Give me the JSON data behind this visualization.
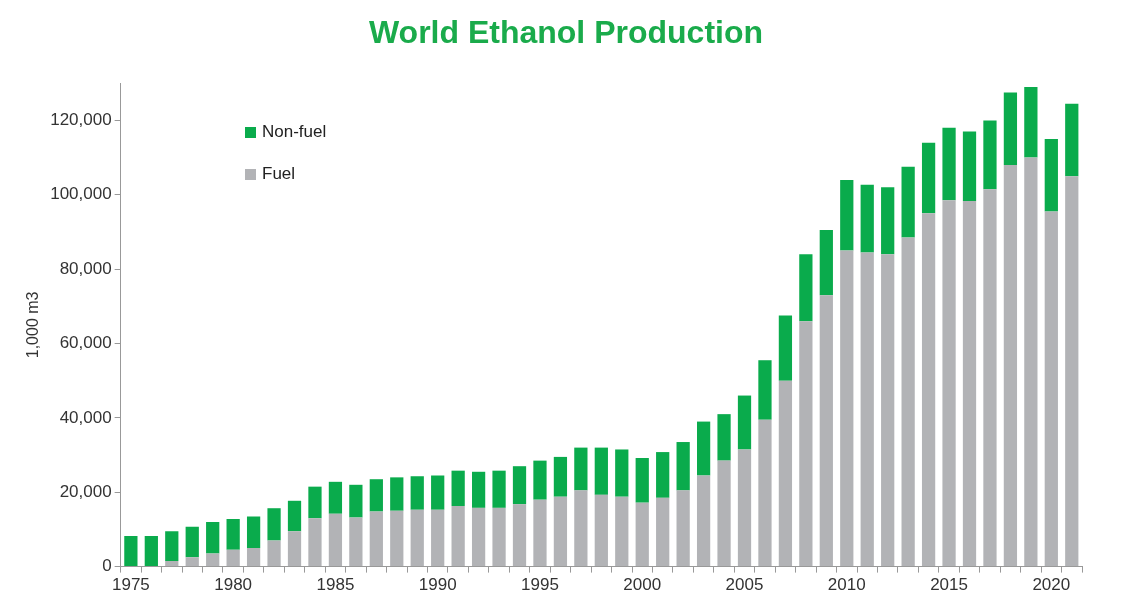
{
  "chart_data": {
    "type": "bar",
    "title": "World Ethanol Production",
    "ylabel": "1,000 m3",
    "categories": [
      "1975",
      null,
      null,
      null,
      null,
      "1980",
      null,
      null,
      null,
      null,
      "1985",
      null,
      null,
      null,
      null,
      "1990",
      null,
      null,
      null,
      null,
      "1995",
      null,
      null,
      null,
      null,
      "2000",
      null,
      null,
      null,
      null,
      "2005",
      null,
      null,
      null,
      null,
      "2010",
      null,
      null,
      null,
      null,
      "2015",
      null,
      null,
      null,
      null,
      "2020",
      null
    ],
    "stacked": true,
    "series": [
      {
        "name": "Fuel",
        "color": "#b2b3b6",
        "values": [
          null,
          null,
          1500,
          2500,
          3500,
          4500,
          5000,
          7000,
          9500,
          13000,
          14200,
          13200,
          14800,
          15000,
          15300,
          15300,
          16300,
          15800,
          15800,
          16800,
          18000,
          18800,
          20500,
          19300,
          18800,
          17200,
          18500,
          20500,
          24500,
          28500,
          31500,
          39500,
          50000,
          66000,
          73000,
          85000,
          84500,
          84000,
          88500,
          95000,
          98500,
          98300,
          101500,
          108000,
          110000,
          95500,
          105000
        ]
      },
      {
        "name": "Non-fuel",
        "color": "#0aab4c",
        "values": [
          8200,
          8200,
          8000,
          8200,
          8500,
          8300,
          8500,
          8700,
          8200,
          8500,
          8600,
          8800,
          8700,
          9000,
          9000,
          9200,
          9500,
          9700,
          10000,
          10200,
          10500,
          10700,
          11500,
          12700,
          12700,
          12000,
          12300,
          13000,
          14500,
          12500,
          14500,
          16000,
          17500,
          18000,
          17500,
          19000,
          18200,
          18000,
          19000,
          19000,
          19500,
          18700,
          18500,
          19500,
          19000,
          19500,
          19500
        ]
      }
    ],
    "ylim": [
      0,
      130000
    ],
    "yticks": [
      {
        "value": 0,
        "label": "0"
      },
      {
        "value": 20000,
        "label": "20,000"
      },
      {
        "value": 40000,
        "label": "40,000"
      },
      {
        "value": 60000,
        "label": "60,000"
      },
      {
        "value": 80000,
        "label": "80,000"
      },
      {
        "value": 100000,
        "label": "100,000"
      },
      {
        "value": 120000,
        "label": "120,000"
      }
    ],
    "grid": false,
    "legend": "top left"
  }
}
